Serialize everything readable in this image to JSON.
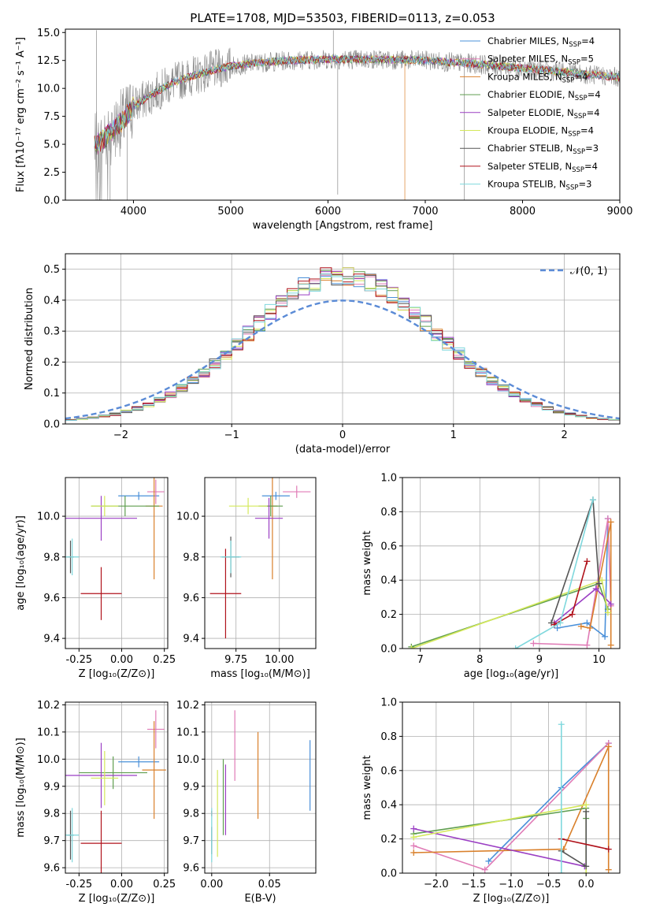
{
  "colors": {
    "Chabrier MILES": "#4a90d9",
    "Salpeter MILES": "#e07bb6",
    "Kroupa MILES": "#d9802b",
    "Chabrier ELODIE": "#5f9e4f",
    "Salpeter ELODIE": "#9b3fc4",
    "Kroupa ELODIE": "#d4e85a",
    "Chabrier STELIB": "#555555",
    "Salpeter STELIB": "#b0121b",
    "Kroupa STELIB": "#7fd8dd"
  },
  "chart_data": [
    {
      "id": "spectrum",
      "type": "line",
      "title": "PLATE=1708, MJD=53503, FIBERID=0113, z=0.053",
      "xlabel": "wavelength [Angstrom, rest frame]",
      "ylabel": "Flux [fλ10⁻¹⁷ erg cm⁻² s⁻¹ A⁻¹]",
      "xlim": [
        3300,
        9000
      ],
      "ylim": [
        0,
        15.3
      ],
      "xticks": [
        "4000",
        "5000",
        "6000",
        "7000",
        "8000",
        "9000"
      ],
      "yticks": [
        "0.0",
        "2.5",
        "5.0",
        "7.5",
        "10.0",
        "12.5",
        "15.0"
      ],
      "legend": [
        {
          "name": "Chabrier MILES, N",
          "sub": "SSP",
          "n": "=4"
        },
        {
          "name": "Salpeter MILES, N",
          "sub": "SSP",
          "n": "=5"
        },
        {
          "name": "Kroupa MILES, N",
          "sub": "SSP",
          "n": "=4"
        },
        {
          "name": "Chabrier ELODIE, N",
          "sub": "SSP",
          "n": "=4"
        },
        {
          "name": "Salpeter ELODIE, N",
          "sub": "SSP",
          "n": "=4"
        },
        {
          "name": "Kroupa ELODIE, N",
          "sub": "SSP",
          "n": "=4"
        },
        {
          "name": "Chabrier STELIB, N",
          "sub": "SSP",
          "n": "=3"
        },
        {
          "name": "Salpeter STELIB, N",
          "sub": "SSP",
          "n": "=4"
        },
        {
          "name": "Kroupa STELIB, N",
          "sub": "SSP",
          "n": "=3"
        }
      ],
      "continuum": [
        [
          3600,
          4.8
        ],
        [
          3700,
          5.5
        ],
        [
          3800,
          6.4
        ],
        [
          3900,
          7.2
        ],
        [
          4000,
          8.4
        ],
        [
          4200,
          9.5
        ],
        [
          4400,
          10.5
        ],
        [
          4600,
          11.1
        ],
        [
          4800,
          11.6
        ],
        [
          5000,
          12.0
        ],
        [
          5300,
          12.3
        ],
        [
          5600,
          12.5
        ],
        [
          6000,
          12.6
        ],
        [
          6500,
          12.6
        ],
        [
          7000,
          12.5
        ],
        [
          7500,
          12.2
        ],
        [
          8000,
          11.8
        ],
        [
          8500,
          11.4
        ],
        [
          9000,
          11.0
        ]
      ]
    },
    {
      "id": "residuals",
      "type": "bar",
      "xlabel": "(data-model)/error",
      "ylabel": "Normed distribution",
      "xlim": [
        -2.5,
        2.5
      ],
      "ylim": [
        0,
        0.55
      ],
      "xticks": [
        "−2",
        "−1",
        "0",
        "1",
        "2"
      ],
      "yticks": [
        "0.0",
        "0.1",
        "0.2",
        "0.3",
        "0.4",
        "0.5"
      ],
      "legend": "𝒩(0, 1)",
      "bin_width": 0.1,
      "bin_start": -2.5,
      "gaussian": {
        "mean": 0,
        "sigma": 1
      }
    },
    {
      "id": "age_vs_Z",
      "type": "scatter",
      "xlabel": "Z [log₁₀(Z/Z⊙)]",
      "ylabel": "age  [log₁₀(age/yr)]",
      "xlim": [
        -0.33,
        0.27
      ],
      "ylim": [
        9.35,
        10.19
      ],
      "xticks": [
        [
          "-0.25",
          -0.25
        ],
        [
          "0.00",
          0.0
        ],
        [
          "0.25",
          0.25
        ]
      ],
      "yticks": [
        [
          "9.4",
          9.4
        ],
        [
          "9.6",
          9.6
        ],
        [
          "9.8",
          9.8
        ],
        [
          "10.0",
          10.0
        ]
      ],
      "points": [
        {
          "model": "Chabrier MILES",
          "x": 0.1,
          "y": 10.1,
          "xerr": 0.12,
          "yerr": 0.02
        },
        {
          "model": "Salpeter MILES",
          "x": 0.2,
          "y": 10.12,
          "xerr": 0.05,
          "yerr": 0.06
        },
        {
          "model": "Kroupa MILES",
          "x": 0.19,
          "y": 10.05,
          "xerr": 0.05,
          "yerr": 0.36
        },
        {
          "model": "Chabrier ELODIE",
          "x": 0.02,
          "y": 10.05,
          "xerr": 0.2,
          "yerr": 0.05
        },
        {
          "model": "Salpeter ELODIE",
          "x": -0.12,
          "y": 9.99,
          "xerr": 0.21,
          "yerr": 0.11
        },
        {
          "model": "Kroupa ELODIE",
          "x": -0.1,
          "y": 10.05,
          "xerr": 0.08,
          "yerr": 0.05
        },
        {
          "model": "Chabrier STELIB",
          "x": -0.3,
          "y": 9.8,
          "xerr": 0.02,
          "yerr": 0.08
        },
        {
          "model": "Salpeter STELIB",
          "x": -0.12,
          "y": 9.62,
          "xerr": 0.12,
          "yerr": 0.13
        },
        {
          "model": "Kroupa STELIB",
          "x": -0.29,
          "y": 9.8,
          "xerr": 0.04,
          "yerr": 0.09
        }
      ]
    },
    {
      "id": "age_vs_mass",
      "type": "scatter",
      "xlabel": "mass [log₁₀(M/M⊙)]",
      "ylabel": "",
      "xlim": [
        9.57,
        10.21
      ],
      "ylim": [
        9.35,
        10.19
      ],
      "xticks": [
        [
          "9.75",
          9.75
        ],
        [
          "10.00",
          10.0
        ]
      ],
      "yticks": [
        [
          "9.4",
          9.4
        ],
        [
          "9.6",
          9.6
        ],
        [
          "9.8",
          9.8
        ],
        [
          "10.0",
          10.0
        ]
      ],
      "points": [
        {
          "model": "Chabrier MILES",
          "x": 9.98,
          "y": 10.1,
          "xerr": 0.08,
          "yerr": 0.02
        },
        {
          "model": "Salpeter MILES",
          "x": 10.1,
          "y": 10.12,
          "xerr": 0.08,
          "yerr": 0.03
        },
        {
          "model": "Kroupa MILES",
          "x": 9.96,
          "y": 10.05,
          "xerr": 0.03,
          "yerr": 0.36
        },
        {
          "model": "Chabrier ELODIE",
          "x": 9.95,
          "y": 10.05,
          "xerr": 0.07,
          "yerr": 0.05
        },
        {
          "model": "Salpeter ELODIE",
          "x": 9.94,
          "y": 9.99,
          "xerr": 0.08,
          "yerr": 0.1
        },
        {
          "model": "Kroupa ELODIE",
          "x": 9.82,
          "y": 10.05,
          "xerr": 0.11,
          "yerr": 0.04
        },
        {
          "model": "Chabrier STELIB",
          "x": 9.72,
          "y": 9.8,
          "xerr": 0.05,
          "yerr": 0.1
        },
        {
          "model": "Salpeter STELIB",
          "x": 9.69,
          "y": 9.62,
          "xerr": 0.09,
          "yerr": 0.22
        },
        {
          "model": "Kroupa STELIB",
          "x": 9.72,
          "y": 9.8,
          "xerr": 0.06,
          "yerr": 0.08
        }
      ]
    },
    {
      "id": "weight_vs_age",
      "type": "line",
      "xlabel": "age  [log₁₀(age/yr)]",
      "ylabel": "mass weight",
      "xlim": [
        6.7,
        10.35
      ],
      "ylim": [
        0,
        1.0
      ],
      "xticks": [
        [
          "7",
          7
        ],
        [
          "8",
          8
        ],
        [
          "9",
          9
        ],
        [
          "10",
          10
        ]
      ],
      "yticks": [
        [
          "0.0",
          0.0
        ],
        [
          "0.2",
          0.2
        ],
        [
          "0.4",
          0.4
        ],
        [
          "0.6",
          0.6
        ],
        [
          "0.8",
          0.8
        ],
        [
          "1.0",
          1.0
        ]
      ],
      "series": [
        {
          "model": "Chabrier MILES",
          "points": [
            [
              9.3,
              0.12
            ],
            [
              9.8,
              0.15
            ],
            [
              10.1,
              0.07
            ],
            [
              10.15,
              0.76
            ]
          ]
        },
        {
          "model": "Salpeter MILES",
          "points": [
            [
              8.9,
              0.03
            ],
            [
              9.8,
              0.02
            ],
            [
              10.15,
              0.76
            ],
            [
              10.2,
              0.25
            ]
          ]
        },
        {
          "model": "Kroupa MILES",
          "points": [
            [
              9.7,
              0.13
            ],
            [
              9.85,
              0.12
            ],
            [
              10.2,
              0.74
            ],
            [
              10.2,
              0.02
            ]
          ]
        },
        {
          "model": "Chabrier ELODIE",
          "points": [
            [
              6.85,
              0.01
            ],
            [
              10.0,
              0.38
            ],
            [
              10.15,
              0.23
            ]
          ]
        },
        {
          "model": "Salpeter ELODIE",
          "points": [
            [
              9.25,
              0.15
            ],
            [
              9.95,
              0.35
            ],
            [
              10.2,
              0.26
            ]
          ]
        },
        {
          "model": "Kroupa ELODIE",
          "points": [
            [
              6.85,
              0.0
            ],
            [
              10.05,
              0.4
            ],
            [
              10.15,
              0.21
            ]
          ]
        },
        {
          "model": "Chabrier STELIB",
          "points": [
            [
              9.2,
              0.15
            ],
            [
              9.9,
              0.87
            ],
            [
              10.0,
              0.38
            ]
          ]
        },
        {
          "model": "Salpeter STELIB",
          "points": [
            [
              9.25,
              0.14
            ],
            [
              9.55,
              0.2
            ],
            [
              9.8,
              0.51
            ]
          ]
        },
        {
          "model": "Kroupa STELIB",
          "points": [
            [
              8.6,
              0.0
            ],
            [
              9.35,
              0.15
            ],
            [
              9.9,
              0.87
            ]
          ]
        }
      ]
    },
    {
      "id": "mass_vs_Z",
      "type": "scatter",
      "xlabel": "Z [log₁₀(Z/Z⊙)]",
      "ylabel": "mass [log₁₀(M/M⊙)]",
      "xlim": [
        -0.33,
        0.27
      ],
      "ylim": [
        9.58,
        10.21
      ],
      "xticks": [
        [
          "-0.25",
          -0.25
        ],
        [
          "0.00",
          0.0
        ],
        [
          "0.25",
          0.25
        ]
      ],
      "yticks": [
        [
          "9.6",
          9.6
        ],
        [
          "9.7",
          9.7
        ],
        [
          "9.8",
          9.8
        ],
        [
          "9.9",
          9.9
        ],
        [
          "10.0",
          10.0
        ],
        [
          "10.1",
          10.1
        ],
        [
          "10.2",
          10.2
        ]
      ],
      "points": [
        {
          "model": "Chabrier MILES",
          "x": 0.1,
          "y": 9.99,
          "xerr": 0.12,
          "yerr": 0.02
        },
        {
          "model": "Salpeter MILES",
          "x": 0.2,
          "y": 10.11,
          "xerr": 0.05,
          "yerr": 0.07
        },
        {
          "model": "Kroupa MILES",
          "x": 0.19,
          "y": 9.96,
          "xerr": 0.07,
          "yerr": 0.18
        },
        {
          "model": "Chabrier ELODIE",
          "x": -0.05,
          "y": 9.95,
          "xerr": 0.2,
          "yerr": 0.06
        },
        {
          "model": "Salpeter ELODIE",
          "x": -0.12,
          "y": 9.94,
          "xerr": 0.21,
          "yerr": 0.12
        },
        {
          "model": "Kroupa ELODIE",
          "x": -0.1,
          "y": 9.93,
          "xerr": 0.08,
          "yerr": 0.1
        },
        {
          "model": "Chabrier STELIB",
          "x": -0.3,
          "y": 9.72,
          "xerr": 0.02,
          "yerr": 0.09
        },
        {
          "model": "Salpeter STELIB",
          "x": -0.12,
          "y": 9.69,
          "xerr": 0.12,
          "yerr": 0.12
        },
        {
          "model": "Kroupa STELIB",
          "x": -0.29,
          "y": 9.72,
          "xerr": 0.04,
          "yerr": 0.1
        }
      ]
    },
    {
      "id": "mass_vs_EBV",
      "type": "scatter",
      "xlabel": "E(B-V)",
      "ylabel": "",
      "xlim": [
        -0.006,
        0.09
      ],
      "ylim": [
        9.58,
        10.21
      ],
      "xticks": [
        [
          "0.00",
          0.0
        ],
        [
          "0.05",
          0.05
        ]
      ],
      "yticks": [
        [
          "9.6",
          9.6
        ],
        [
          "9.7",
          9.7
        ],
        [
          "9.8",
          9.8
        ],
        [
          "9.9",
          9.9
        ],
        [
          "10.0",
          10.0
        ],
        [
          "10.1",
          10.1
        ],
        [
          "10.2",
          10.2
        ]
      ],
      "points": [
        {
          "model": "Chabrier MILES",
          "x": 0.085,
          "y": 9.94,
          "xerr": 0.0,
          "yerr": 0.13
        },
        {
          "model": "Salpeter MILES",
          "x": 0.02,
          "y": 10.05,
          "xerr": 0.0,
          "yerr": 0.13
        },
        {
          "model": "Kroupa MILES",
          "x": 0.04,
          "y": 9.94,
          "xerr": 0.0,
          "yerr": 0.16
        },
        {
          "model": "Chabrier ELODIE",
          "x": 0.01,
          "y": 9.86,
          "xerr": 0.0,
          "yerr": 0.14
        },
        {
          "model": "Salpeter ELODIE",
          "x": 0.012,
          "y": 9.85,
          "xerr": 0.0,
          "yerr": 0.13
        },
        {
          "model": "Kroupa ELODIE",
          "x": 0.005,
          "y": 9.8,
          "xerr": 0.0,
          "yerr": 0.16
        },
        {
          "model": "Chabrier STELIB",
          "x": 0.0,
          "y": 9.7,
          "xerr": 0.0,
          "yerr": 0.05
        },
        {
          "model": "Salpeter STELIB",
          "x": 0.0,
          "y": 9.8,
          "xerr": 0.0,
          "yerr": 0.01
        },
        {
          "model": "Kroupa STELIB",
          "x": 0.0,
          "y": 9.72,
          "xerr": 0.0,
          "yerr": 0.1
        }
      ]
    },
    {
      "id": "weight_vs_Z",
      "type": "line",
      "xlabel": "Z [log₁₀(Z/Z⊙)]",
      "ylabel": "mass weight",
      "xlim": [
        -2.45,
        0.45
      ],
      "ylim": [
        0,
        1.0
      ],
      "xticks": [
        [
          "−2.0",
          -2.0
        ],
        [
          "−1.5",
          -1.5
        ],
        [
          "−1.0",
          -1.0
        ],
        [
          "−0.5",
          -0.5
        ],
        [
          "0.0",
          0.0
        ]
      ],
      "yticks": [
        [
          "0.0",
          0.0
        ],
        [
          "0.2",
          0.2
        ],
        [
          "0.4",
          0.4
        ],
        [
          "0.6",
          0.6
        ],
        [
          "0.8",
          0.8
        ],
        [
          "1.0",
          1.0
        ]
      ],
      "series": [
        {
          "model": "Chabrier MILES",
          "points": [
            [
              -1.3,
              0.07
            ],
            [
              -0.33,
              0.5
            ],
            [
              0.3,
              0.76
            ]
          ]
        },
        {
          "model": "Salpeter MILES",
          "points": [
            [
              -2.3,
              0.16
            ],
            [
              -1.35,
              0.02
            ],
            [
              0.3,
              0.76
            ]
          ]
        },
        {
          "model": "Kroupa MILES",
          "points": [
            [
              -2.3,
              0.12
            ],
            [
              -0.3,
              0.14
            ],
            [
              0.3,
              0.74
            ],
            [
              0.3,
              0.02
            ]
          ]
        },
        {
          "model": "Chabrier ELODIE",
          "points": [
            [
              -2.3,
              0.23
            ],
            [
              0.0,
              0.38
            ],
            [
              0.0,
              0.32
            ]
          ]
        },
        {
          "model": "Salpeter ELODIE",
          "points": [
            [
              -2.3,
              0.26
            ],
            [
              -0.02,
              0.04
            ]
          ]
        },
        {
          "model": "Kroupa ELODIE",
          "points": [
            [
              -2.3,
              0.21
            ],
            [
              0.0,
              0.4
            ],
            [
              0.0,
              0.0
            ]
          ]
        },
        {
          "model": "Chabrier STELIB",
          "points": [
            [
              -0.33,
              0.13
            ],
            [
              0.0,
              0.04
            ],
            [
              0.0,
              0.36
            ]
          ]
        },
        {
          "model": "Salpeter STELIB",
          "points": [
            [
              -0.33,
              0.2
            ],
            [
              0.3,
              0.14
            ]
          ]
        },
        {
          "model": "Kroupa STELIB",
          "points": [
            [
              -0.33,
              0.0
            ],
            [
              -0.33,
              0.87
            ]
          ]
        }
      ]
    }
  ]
}
